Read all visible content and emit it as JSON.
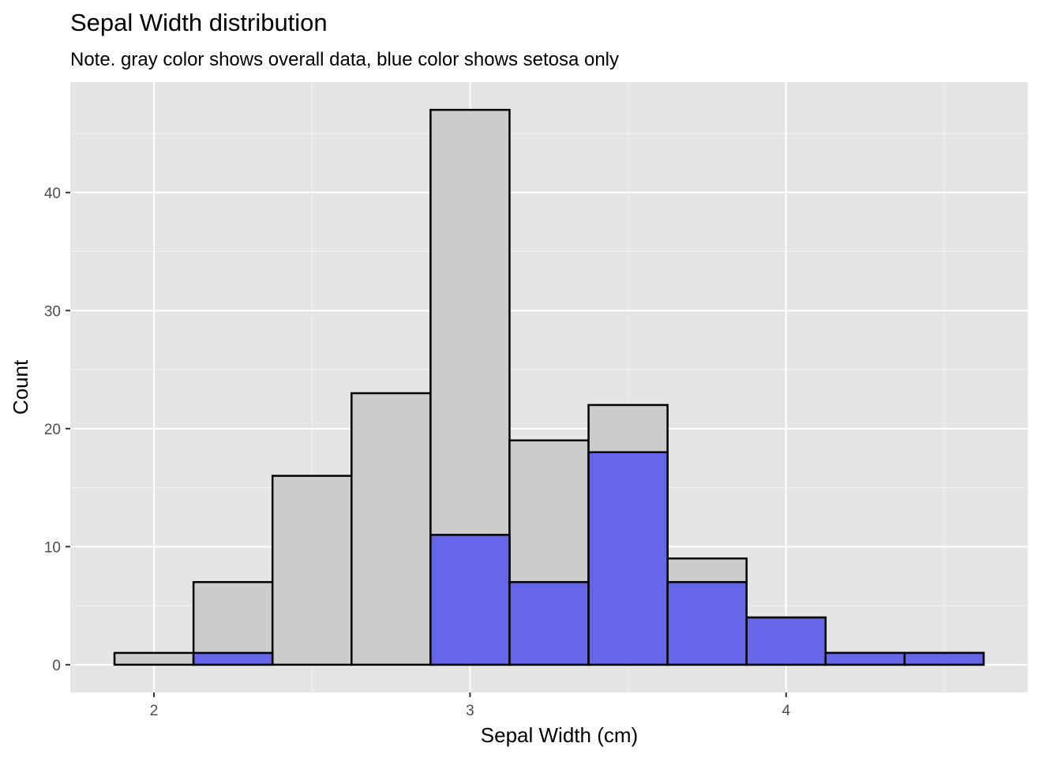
{
  "chart_data": {
    "type": "bar",
    "title": "Sepal Width distribution",
    "subtitle": "Note. gray color shows overall data, blue color shows setosa only",
    "xlabel": "Sepal Width (cm)",
    "ylabel": "Count",
    "xlim": [
      1.735,
      4.765
    ],
    "ylim": [
      -2.35,
      49.35
    ],
    "x_ticks": [
      2,
      3,
      4
    ],
    "x_tick_labels": [
      "2",
      "3",
      "4"
    ],
    "y_ticks": [
      0,
      10,
      20,
      30,
      40
    ],
    "y_tick_labels": [
      "0",
      "10",
      "20",
      "30",
      "40"
    ],
    "grid": true,
    "bins": [
      {
        "start": 1.875,
        "end": 2.125
      },
      {
        "start": 2.125,
        "end": 2.375
      },
      {
        "start": 2.375,
        "end": 2.625
      },
      {
        "start": 2.625,
        "end": 2.875
      },
      {
        "start": 2.875,
        "end": 3.125
      },
      {
        "start": 3.125,
        "end": 3.375
      },
      {
        "start": 3.375,
        "end": 3.625
      },
      {
        "start": 3.625,
        "end": 3.875
      },
      {
        "start": 3.875,
        "end": 4.125
      },
      {
        "start": 4.125,
        "end": 4.375
      },
      {
        "start": 4.375,
        "end": 4.625
      }
    ],
    "series": [
      {
        "key": "overall",
        "values": [
          1,
          7,
          16,
          23,
          47,
          19,
          22,
          9,
          4,
          1,
          1
        ],
        "color": "#cccccc"
      },
      {
        "key": "setosa",
        "values": [
          0,
          1,
          0,
          0,
          11,
          7,
          18,
          7,
          4,
          1,
          1
        ],
        "color": "#6666e8"
      }
    ],
    "colors": {
      "panel_background": "#e5e5e5",
      "grid_major": "#ffffff",
      "grid_minor": "#f2f2f2",
      "bar_outline": "#000000"
    }
  }
}
